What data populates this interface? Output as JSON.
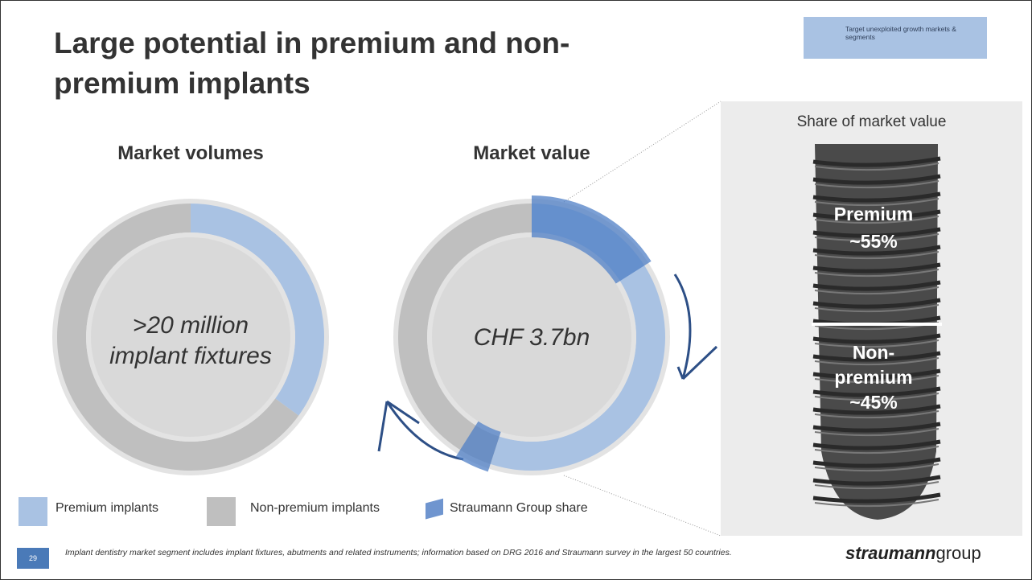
{
  "header": {
    "title": "Large potential in premium and non-premium implants",
    "badge": "Target unexploited growth markets & segments"
  },
  "volumes": {
    "title": "Market volumes",
    "center": ">20 million implant fixtures",
    "premium": 35,
    "non_premium": 65
  },
  "value": {
    "title": "Market value",
    "center": "CHF 3.7bn",
    "premium": 55,
    "non_premium": 45,
    "straumann": [
      16,
      4
    ]
  },
  "panel": {
    "title": "Share of market value",
    "premium_label": "Premium",
    "premium_share": "~55%",
    "non_premium_label": "Non-premium",
    "non_premium_share": "~45%"
  },
  "legend": [
    "Premium implants",
    "Non-premium implants",
    "Straumann Group share"
  ],
  "footer": {
    "page": "29",
    "note": "Implant dentistry market segment includes implant fixtures, abutments and related instruments; information based on DRG 2016 and Straumann survey in the largest 50 countries.",
    "logo_bold": "straumann",
    "logo_light": "group"
  }
}
